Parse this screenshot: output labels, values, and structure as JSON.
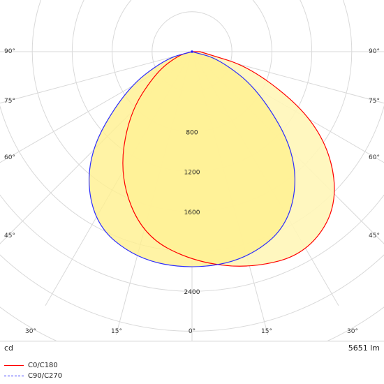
{
  "chart_data": {
    "type": "polar",
    "title": "",
    "radial_unit": "cd",
    "radial_labels": [
      800,
      1200,
      1600,
      2400
    ],
    "angle_labels_bottom": [
      "30°",
      "15°",
      "0°",
      "15°",
      "30°"
    ],
    "angle_labels_sides": [
      "90°",
      "75°",
      "60°",
      "45°"
    ],
    "luminous_flux_label": "5651 lm",
    "grid": true,
    "series": [
      {
        "name": "C0/C180",
        "color": "#ff0000",
        "line_style": "solid",
        "intensity_by_angle_deg": [
          [
            -90,
            0
          ],
          [
            -75,
            140
          ],
          [
            -60,
            420
          ],
          [
            -45,
            900
          ],
          [
            -30,
            1450
          ],
          [
            -15,
            1900
          ],
          [
            0,
            2100
          ],
          [
            15,
            2250
          ],
          [
            30,
            2330
          ],
          [
            45,
            2100
          ],
          [
            60,
            1500
          ],
          [
            75,
            650
          ],
          [
            90,
            80
          ]
        ]
      },
      {
        "name": "C90/C270",
        "color": "#2b2bff",
        "line_style": "dashed",
        "intensity_by_angle_deg": [
          [
            -90,
            0
          ],
          [
            -75,
            280
          ],
          [
            -60,
            780
          ],
          [
            -45,
            1500
          ],
          [
            -30,
            1980
          ],
          [
            -15,
            2150
          ],
          [
            0,
            2180
          ],
          [
            15,
            2150
          ],
          [
            30,
            1980
          ],
          [
            45,
            1500
          ],
          [
            60,
            780
          ],
          [
            75,
            280
          ],
          [
            90,
            0
          ]
        ]
      }
    ]
  },
  "ui": {
    "unit_left": "cd",
    "unit_right": "5651 lm",
    "legend": [
      {
        "label": "C0/C180",
        "color": "#ff0000",
        "style": "solid"
      },
      {
        "label": "C90/C270",
        "color": "#2b2bff",
        "style": "dashed"
      }
    ]
  }
}
